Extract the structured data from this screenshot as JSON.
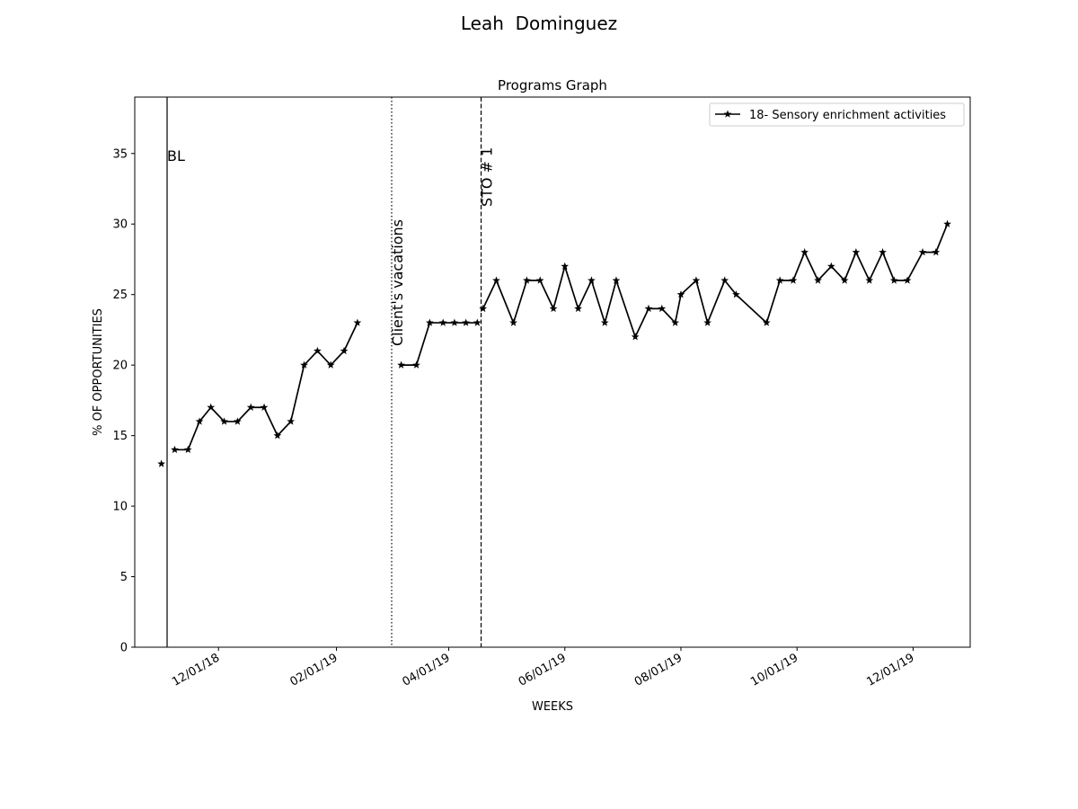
{
  "page": {
    "suptitle": "Leah  Dominguez"
  },
  "chart_data": {
    "type": "line",
    "title": "Programs Graph",
    "xlabel": "WEEKS",
    "ylabel": "% OF OPPORTUNITIES",
    "ylim": [
      0,
      39
    ],
    "xlim": [
      "2018-10-18",
      "2019-12-31"
    ],
    "yticks": [
      0,
      5,
      10,
      15,
      20,
      25,
      30,
      35
    ],
    "xticks": [
      {
        "date": "2018-12-01",
        "label": "12/01/18"
      },
      {
        "date": "2019-02-01",
        "label": "02/01/19"
      },
      {
        "date": "2019-04-01",
        "label": "04/01/19"
      },
      {
        "date": "2019-06-01",
        "label": "06/01/19"
      },
      {
        "date": "2019-08-01",
        "label": "08/01/19"
      },
      {
        "date": "2019-10-01",
        "label": "10/01/19"
      },
      {
        "date": "2019-12-01",
        "label": "12/01/19"
      }
    ],
    "grid": false,
    "legend_position": "upper-right",
    "line_color": "#000000",
    "marker": "star",
    "phase_lines": [
      {
        "date": "2018-11-04",
        "label": "BL",
        "style": "solid",
        "rotated": false
      },
      {
        "date": "2019-03-02",
        "label": "Client's vacations",
        "style": "dotted",
        "rotated": true
      },
      {
        "date": "2019-04-18",
        "label": "STO # 1",
        "style": "dashed",
        "rotated": true
      }
    ],
    "series": [
      {
        "name": "18- Sensory enrichment activities",
        "segments": [
          [
            {
              "x": "2018-11-01",
              "y": 13
            }
          ],
          [
            {
              "x": "2018-11-08",
              "y": 14
            },
            {
              "x": "2018-11-15",
              "y": 14
            },
            {
              "x": "2018-11-21",
              "y": 16
            },
            {
              "x": "2018-11-27",
              "y": 17
            },
            {
              "x": "2018-12-04",
              "y": 16
            },
            {
              "x": "2018-12-11",
              "y": 16
            },
            {
              "x": "2018-12-18",
              "y": 17
            },
            {
              "x": "2018-12-25",
              "y": 17
            },
            {
              "x": "2019-01-01",
              "y": 15
            },
            {
              "x": "2019-01-08",
              "y": 16
            },
            {
              "x": "2019-01-15",
              "y": 20
            },
            {
              "x": "2019-01-22",
              "y": 21
            },
            {
              "x": "2019-01-29",
              "y": 20
            },
            {
              "x": "2019-02-05",
              "y": 21
            },
            {
              "x": "2019-02-12",
              "y": 23
            }
          ],
          [
            {
              "x": "2019-03-07",
              "y": 20
            },
            {
              "x": "2019-03-15",
              "y": 20
            },
            {
              "x": "2019-03-22",
              "y": 23
            },
            {
              "x": "2019-03-29",
              "y": 23
            },
            {
              "x": "2019-04-04",
              "y": 23
            },
            {
              "x": "2019-04-10",
              "y": 23
            },
            {
              "x": "2019-04-16",
              "y": 23
            }
          ],
          [
            {
              "x": "2019-04-19",
              "y": 24
            },
            {
              "x": "2019-04-26",
              "y": 26
            },
            {
              "x": "2019-05-05",
              "y": 23
            },
            {
              "x": "2019-05-12",
              "y": 26
            },
            {
              "x": "2019-05-19",
              "y": 26
            },
            {
              "x": "2019-05-26",
              "y": 24
            },
            {
              "x": "2019-06-01",
              "y": 27
            },
            {
              "x": "2019-06-08",
              "y": 24
            },
            {
              "x": "2019-06-15",
              "y": 26
            },
            {
              "x": "2019-06-22",
              "y": 23
            },
            {
              "x": "2019-06-28",
              "y": 26
            },
            {
              "x": "2019-07-08",
              "y": 22
            },
            {
              "x": "2019-07-15",
              "y": 24
            },
            {
              "x": "2019-07-22",
              "y": 24
            },
            {
              "x": "2019-07-29",
              "y": 23
            },
            {
              "x": "2019-08-01",
              "y": 25
            },
            {
              "x": "2019-08-09",
              "y": 26
            },
            {
              "x": "2019-08-15",
              "y": 23
            },
            {
              "x": "2019-08-24",
              "y": 26
            },
            {
              "x": "2019-08-30",
              "y": 25
            },
            {
              "x": "2019-09-15",
              "y": 23
            },
            {
              "x": "2019-09-22",
              "y": 26
            },
            {
              "x": "2019-09-29",
              "y": 26
            },
            {
              "x": "2019-10-05",
              "y": 28
            },
            {
              "x": "2019-10-12",
              "y": 26
            },
            {
              "x": "2019-10-19",
              "y": 27
            },
            {
              "x": "2019-10-26",
              "y": 26
            },
            {
              "x": "2019-11-01",
              "y": 28
            },
            {
              "x": "2019-11-08",
              "y": 26
            },
            {
              "x": "2019-11-15",
              "y": 28
            },
            {
              "x": "2019-11-21",
              "y": 26
            },
            {
              "x": "2019-11-28",
              "y": 26
            },
            {
              "x": "2019-12-06",
              "y": 28
            },
            {
              "x": "2019-12-13",
              "y": 28
            },
            {
              "x": "2019-12-19",
              "y": 30
            }
          ]
        ]
      }
    ]
  }
}
